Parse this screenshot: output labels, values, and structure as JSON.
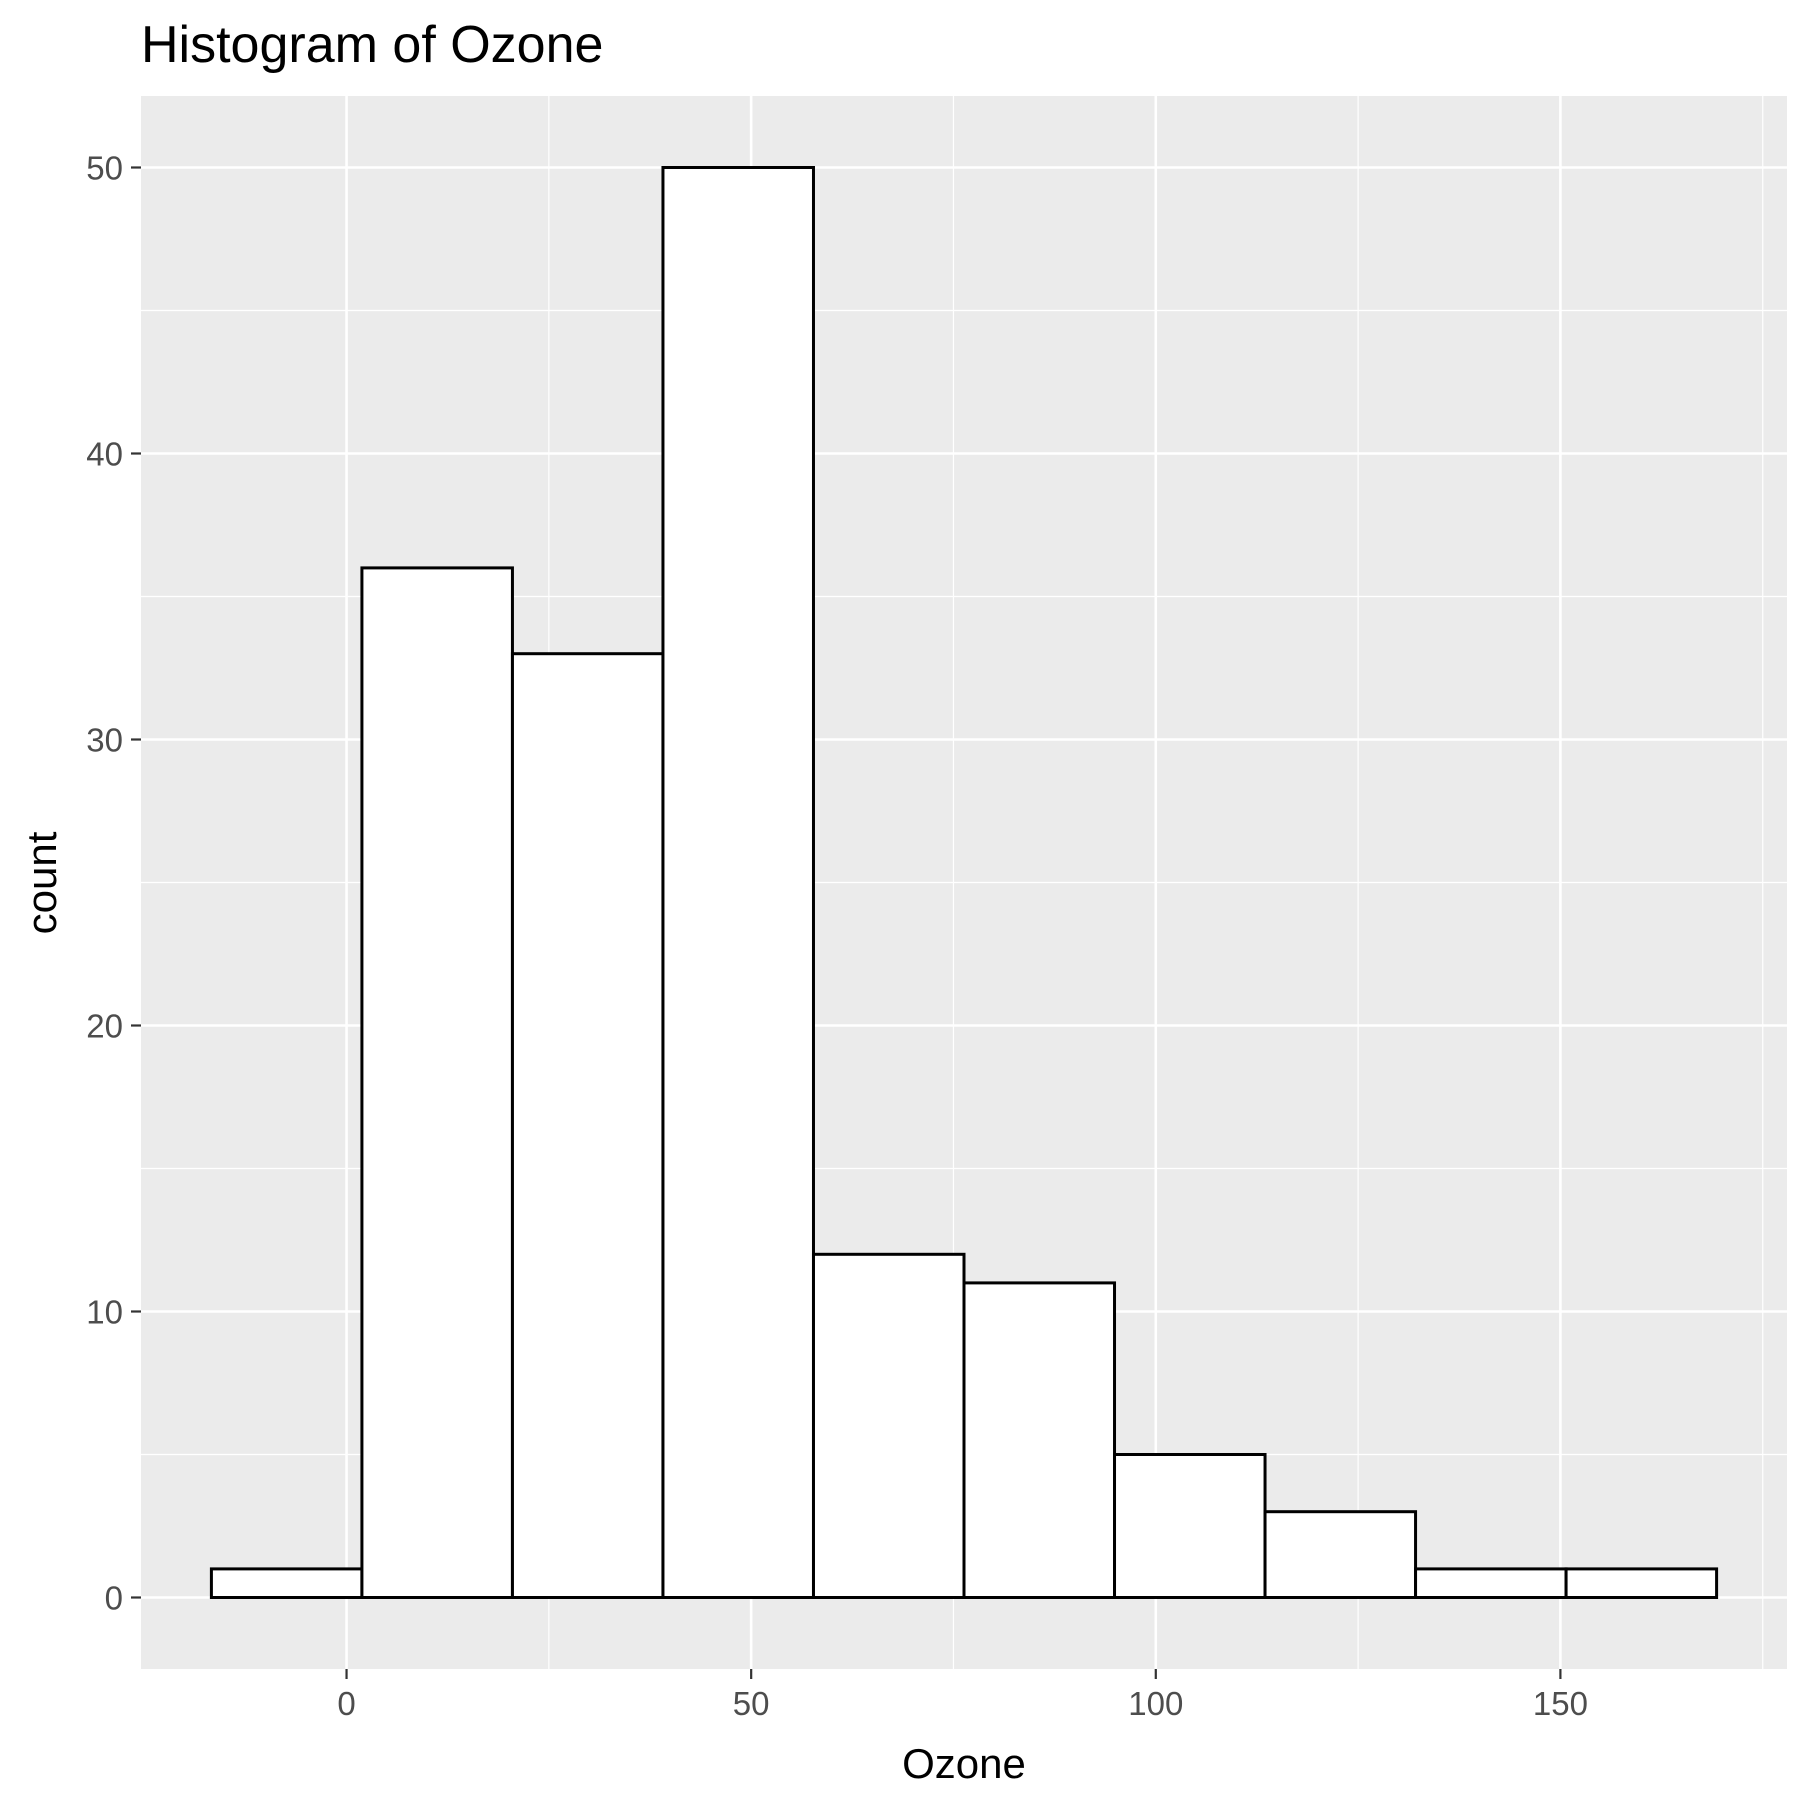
{
  "chart_data": {
    "type": "bar",
    "title": "Histogram of Ozone",
    "xlabel": "Ozone",
    "ylabel": "count",
    "bins": [
      {
        "x0": -16.7,
        "x1": 1.9,
        "count": 1
      },
      {
        "x0": 1.9,
        "x1": 20.5,
        "count": 36
      },
      {
        "x0": 20.5,
        "x1": 39.1,
        "count": 33
      },
      {
        "x0": 39.1,
        "x1": 57.7,
        "count": 50
      },
      {
        "x0": 57.7,
        "x1": 76.3,
        "count": 12
      },
      {
        "x0": 76.3,
        "x1": 94.9,
        "count": 11
      },
      {
        "x0": 94.9,
        "x1": 113.5,
        "count": 5
      },
      {
        "x0": 113.5,
        "x1": 132.1,
        "count": 3
      },
      {
        "x0": 132.1,
        "x1": 150.7,
        "count": 1
      },
      {
        "x0": 150.7,
        "x1": 169.3,
        "count": 1
      }
    ],
    "xlim": [
      -25.4,
      178.0
    ],
    "ylim": [
      -2.5,
      52.5
    ],
    "x_ticks": [
      0,
      50,
      100,
      150
    ],
    "x_tick_labels": [
      "0",
      "50",
      "100",
      "150"
    ],
    "x_minor_ticks": [
      25,
      75,
      125,
      175
    ],
    "y_ticks": [
      0,
      10,
      20,
      30,
      40,
      50
    ],
    "y_tick_labels": [
      "0",
      "10",
      "20",
      "30",
      "40",
      "50"
    ],
    "y_minor_ticks": [
      5,
      15,
      25,
      35,
      45
    ],
    "grid": true,
    "colors": {
      "panel_background": "#ebebeb",
      "grid": "#ffffff",
      "bar_fill": "#ffffff",
      "bar_outline": "#000000"
    }
  }
}
